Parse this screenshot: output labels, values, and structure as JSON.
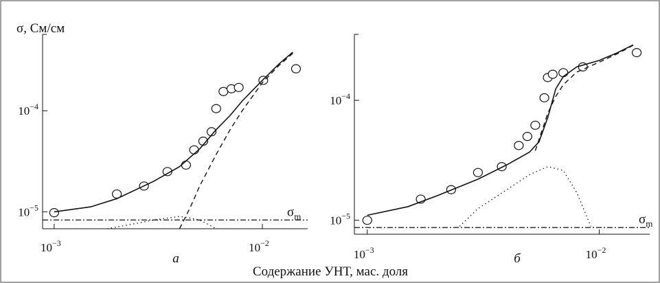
{
  "figure": {
    "xlabel": "Содержание УНТ, мас. доля",
    "ylabel": "σ, См/см"
  },
  "chart_data": [
    {
      "type": "line",
      "panel_label": "а",
      "xscale": "log",
      "yscale": "log",
      "xlim": [
        0.00088,
        0.0165
      ],
      "ylim": [
        6.8e-06,
        0.00057
      ],
      "x_ticks": [
        {
          "value": 0.001,
          "base": "10",
          "exp": "−3"
        },
        {
          "value": 0.01,
          "base": "10",
          "exp": "−2"
        }
      ],
      "y_ticks": [
        {
          "value": 1e-05,
          "base": "10",
          "exp": "−5"
        },
        {
          "value": 0.0001,
          "base": "10",
          "exp": "−4"
        }
      ],
      "hline": {
        "value": 8.3e-06,
        "label_main": "σ",
        "label_sub": "m"
      },
      "series": [
        {
          "style": "markers",
          "x": [
            0.001,
            0.002,
            0.0027,
            0.0035,
            0.0043,
            0.0047,
            0.0052,
            0.0057,
            0.006,
            0.0065,
            0.0071,
            0.0077,
            0.0101,
            0.0145
          ],
          "y": [
            9.8e-06,
            1.5e-05,
            1.8e-05,
            2.5e-05,
            2.9e-05,
            4.1e-05,
            5e-05,
            6.2e-05,
            0.000105,
            0.000155,
            0.000165,
            0.00017,
            0.0002,
            0.00026
          ]
        },
        {
          "style": "solid",
          "x": [
            0.001,
            0.0015,
            0.002,
            0.003,
            0.004,
            0.005,
            0.006,
            0.007,
            0.008,
            0.01,
            0.012,
            0.014
          ],
          "y": [
            1e-05,
            1.12e-05,
            1.35e-05,
            2e-05,
            2.8e-05,
            4.2e-05,
            6.5e-05,
            9e-05,
            0.000125,
            0.0002,
            0.00029,
            0.00038
          ]
        },
        {
          "style": "dashed",
          "x": [
            0.004,
            0.0045,
            0.005,
            0.006,
            0.007,
            0.008,
            0.01,
            0.012,
            0.014
          ],
          "y": [
            6.8e-06,
            1.1e-05,
            1.8e-05,
            3.7e-05,
            6.5e-05,
            0.0001,
            0.00019,
            0.00028,
            0.00037
          ]
        },
        {
          "style": "dotted",
          "x": [
            0.0018,
            0.0025,
            0.003,
            0.004,
            0.0045,
            0.005,
            0.0055,
            0.006
          ],
          "y": [
            6.8e-06,
            7.7e-06,
            8.3e-06,
            9e-06,
            8.7e-06,
            8.3e-06,
            7.5e-06,
            6.8e-06
          ]
        }
      ]
    },
    {
      "type": "line",
      "panel_label": "б",
      "xscale": "log",
      "yscale": "log",
      "xlim": [
        0.00088,
        0.0165
      ],
      "ylim": [
        8.5e-06,
        0.000355
      ],
      "x_ticks": [
        {
          "value": 0.001,
          "base": "10",
          "exp": "−3"
        },
        {
          "value": 0.01,
          "base": "10",
          "exp": "−2"
        }
      ],
      "y_ticks": [
        {
          "value": 1e-05,
          "base": "10",
          "exp": "−5"
        },
        {
          "value": 0.0001,
          "base": "10",
          "exp": "−4"
        }
      ],
      "hline": {
        "value": 8.7e-06,
        "label_main": "σ",
        "label_sub": "m"
      },
      "series": [
        {
          "style": "markers",
          "x": [
            0.001,
            0.0017,
            0.0023,
            0.003,
            0.0038,
            0.0045,
            0.0049,
            0.0053,
            0.0058,
            0.006,
            0.0063,
            0.007,
            0.0085,
            0.0145
          ],
          "y": [
            1e-05,
            1.5e-05,
            1.8e-05,
            2.5e-05,
            2.8e-05,
            4.2e-05,
            5e-05,
            6.2e-05,
            0.000105,
            0.000155,
            0.000165,
            0.00017,
            0.00019,
            0.00025
          ]
        },
        {
          "style": "solid",
          "x": [
            0.001,
            0.0015,
            0.002,
            0.003,
            0.004,
            0.005,
            0.0055,
            0.006,
            0.0065,
            0.007,
            0.008,
            0.01,
            0.012,
            0.014
          ],
          "y": [
            1.1e-05,
            1.3e-05,
            1.6e-05,
            2.2e-05,
            2.9e-05,
            3.7e-05,
            4.5e-05,
            7.2e-05,
            0.000125,
            0.000158,
            0.00019,
            0.000215,
            0.00025,
            0.00029
          ]
        },
        {
          "style": "dashed",
          "x": [
            0.0053,
            0.0057,
            0.006,
            0.0065,
            0.007,
            0.008,
            0.01,
            0.012,
            0.014
          ],
          "y": [
            3.8e-05,
            5.8e-05,
            7.8e-05,
            0.000108,
            0.000135,
            0.000172,
            0.000208,
            0.000245,
            0.000288
          ]
        },
        {
          "style": "dotted",
          "x": [
            0.0025,
            0.003,
            0.004,
            0.005,
            0.006,
            0.007,
            0.008,
            0.0092
          ],
          "y": [
            8.9e-06,
            1.25e-05,
            1.8e-05,
            2.4e-05,
            2.8e-05,
            2.6e-05,
            1.7e-05,
            8.9e-06
          ]
        }
      ]
    }
  ]
}
